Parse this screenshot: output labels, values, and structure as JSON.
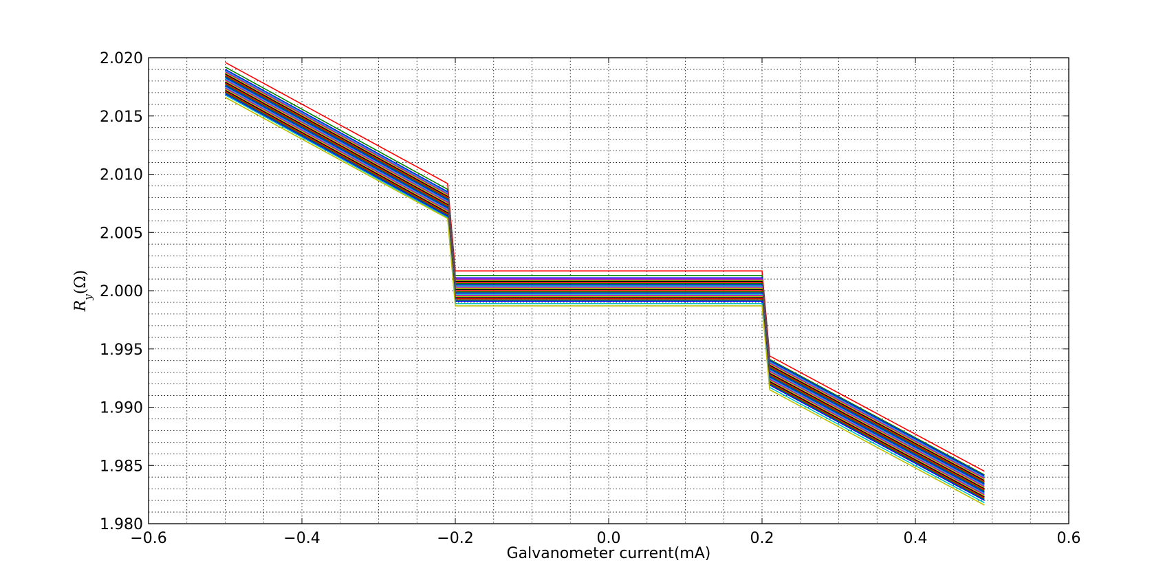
{
  "chart_data": {
    "type": "line",
    "title": "",
    "xlabel": "Galvanometer current(mA)",
    "ylabel": "R_y(Ω)",
    "ylabel_main": "R",
    "ylabel_sub": "y",
    "ylabel_unit": "(Ω)",
    "xlim": [
      -0.6,
      0.6
    ],
    "ylim": [
      1.98,
      2.02
    ],
    "x_ticks": [
      -0.6,
      -0.4,
      -0.2,
      0.0,
      0.2,
      0.4,
      0.6
    ],
    "x_tick_labels": [
      "−0.6",
      "−0.4",
      "−0.2",
      "0.0",
      "0.2",
      "0.4",
      "0.6"
    ],
    "y_ticks": [
      1.98,
      1.985,
      1.99,
      1.995,
      2.0,
      2.005,
      2.01,
      2.015,
      2.02
    ],
    "y_tick_labels": [
      "1.980",
      "1.985",
      "1.990",
      "1.995",
      "2.000",
      "2.005",
      "2.010",
      "2.015",
      "2.020"
    ],
    "x_minor_step": 0.05,
    "y_minor_step": 0.001,
    "grid": true,
    "grid_style": "dotted",
    "legend": "none",
    "colors": [
      "#ff0000",
      "#008000",
      "#0000ff",
      "#00bfbf",
      "#bf00bf",
      "#bfbf00",
      "#000000"
    ],
    "x": [
      -0.5,
      -0.21,
      -0.2,
      0.2,
      0.21,
      0.49
    ],
    "series": [
      {
        "values": [
          2.0196,
          2.0092,
          2.0017,
          2.0017,
          1.9944,
          1.9845
        ]
      },
      {
        "values": [
          2.0192,
          2.0087,
          2.0013,
          2.0013,
          1.9941,
          1.9842
        ]
      },
      {
        "values": [
          2.019,
          2.0085,
          2.0011,
          2.0011,
          1.994,
          1.9841
        ]
      },
      {
        "values": [
          2.0189,
          2.0084,
          2.001,
          2.001,
          1.9939,
          1.984
        ]
      },
      {
        "values": [
          2.0188,
          2.0083,
          2.001,
          2.001,
          1.9938,
          1.9839
        ]
      },
      {
        "values": [
          2.0187,
          2.0082,
          2.0009,
          2.0009,
          1.9937,
          1.9838
        ]
      },
      {
        "values": [
          2.0186,
          2.0081,
          2.0008,
          2.0008,
          1.9936,
          1.9837
        ]
      },
      {
        "values": [
          2.0185,
          2.008,
          2.0007,
          2.0007,
          1.9935,
          1.9836
        ]
      },
      {
        "values": [
          2.0184,
          2.0079,
          2.0006,
          2.0006,
          1.9934,
          1.9835
        ]
      },
      {
        "values": [
          2.0183,
          2.0078,
          2.0005,
          2.0005,
          1.9933,
          1.9834
        ]
      },
      {
        "values": [
          2.0182,
          2.0077,
          2.0004,
          2.0004,
          1.9932,
          1.9833
        ]
      },
      {
        "values": [
          2.0181,
          2.0076,
          2.0003,
          2.0003,
          1.9931,
          1.9832
        ]
      },
      {
        "values": [
          2.018,
          2.0075,
          2.0002,
          2.0002,
          1.993,
          1.9831
        ]
      },
      {
        "values": [
          2.0179,
          2.0074,
          2.0001,
          2.0001,
          1.9929,
          1.983
        ]
      },
      {
        "values": [
          2.0178,
          2.0073,
          2.0,
          2.0,
          1.9928,
          1.9829
        ]
      },
      {
        "values": [
          2.0177,
          2.0072,
          1.9999,
          1.9999,
          1.9927,
          1.9828
        ]
      },
      {
        "values": [
          2.0176,
          2.0071,
          1.9998,
          1.9998,
          1.9926,
          1.9827
        ]
      },
      {
        "values": [
          2.0175,
          2.007,
          1.9997,
          1.9997,
          1.9925,
          1.9826
        ]
      },
      {
        "values": [
          2.0174,
          2.0069,
          1.9996,
          1.9996,
          1.9924,
          1.9825
        ]
      },
      {
        "values": [
          2.0173,
          2.0068,
          1.9995,
          1.9995,
          1.9923,
          1.9824
        ]
      },
      {
        "values": [
          2.0172,
          2.0067,
          1.9994,
          1.9994,
          1.9922,
          1.9823
        ]
      },
      {
        "values": [
          2.0171,
          2.0066,
          1.9993,
          1.9993,
          1.9921,
          1.9822
        ]
      },
      {
        "values": [
          2.017,
          2.0065,
          1.9992,
          1.9992,
          1.992,
          1.9821
        ]
      },
      {
        "values": [
          2.0169,
          2.0064,
          1.9991,
          1.9991,
          1.9919,
          1.982
        ]
      },
      {
        "values": [
          2.0168,
          2.0063,
          1.9989,
          1.9989,
          1.9917,
          1.9818
        ]
      },
      {
        "values": [
          2.0166,
          2.0062,
          1.9987,
          1.9987,
          1.9915,
          1.9816
        ]
      }
    ]
  }
}
